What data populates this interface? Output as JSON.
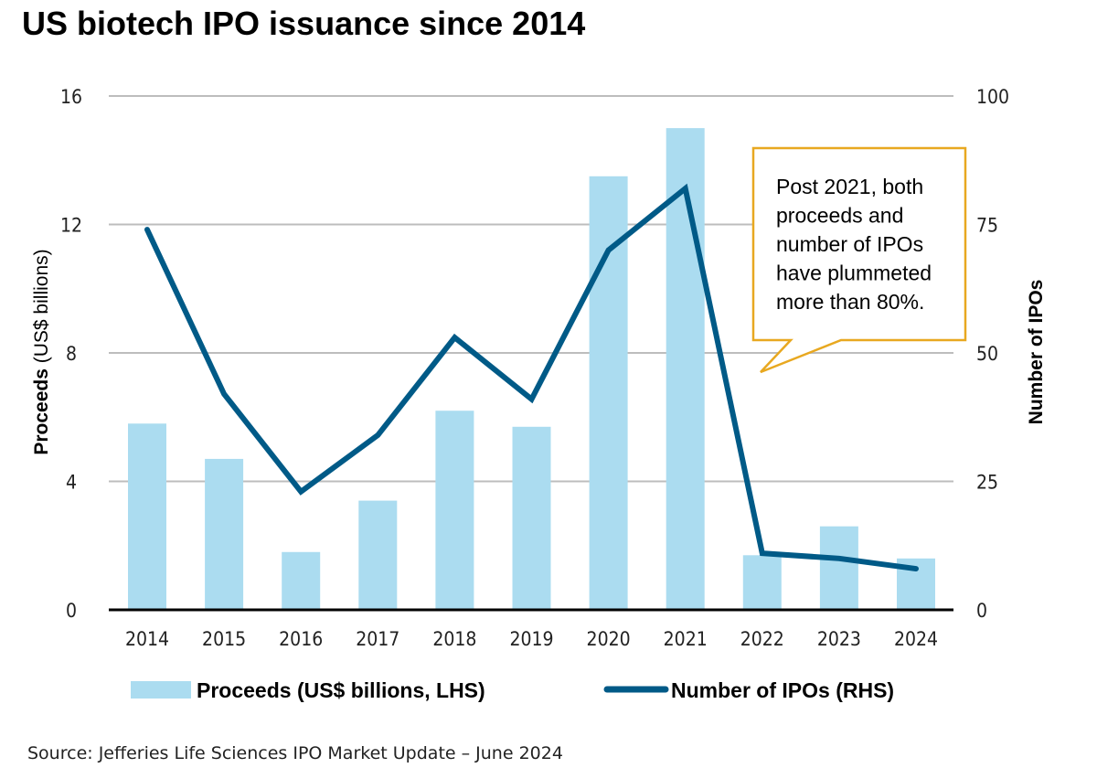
{
  "chart_data": {
    "type": "bar",
    "title": "US biotech IPO issuance since 2014",
    "categories": [
      "2014",
      "2015",
      "2016",
      "2017",
      "2018",
      "2019",
      "2020",
      "2021",
      "2022",
      "2023",
      "2024"
    ],
    "series": [
      {
        "name": "Proceeds (US$ billions, LHS)",
        "type": "bar",
        "axis": "left",
        "color": "#ABDCF0",
        "values": [
          5.8,
          4.7,
          1.8,
          3.4,
          6.2,
          5.7,
          13.5,
          15.0,
          1.7,
          2.6,
          1.6
        ]
      },
      {
        "name": "Number of IPOs (RHS)",
        "type": "line",
        "axis": "right",
        "color": "#005A87",
        "values": [
          74,
          42,
          23,
          34,
          53,
          41,
          70,
          82,
          11,
          10,
          8
        ]
      }
    ],
    "left_axis": {
      "label_bold": "Proceeds",
      "label_rest": " (US$ billions)",
      "ylim": [
        0,
        16
      ],
      "ticks": [
        "0",
        "4",
        "8",
        "12",
        "16"
      ]
    },
    "right_axis": {
      "label": "Number of IPOs",
      "ylim": [
        0,
        100
      ],
      "ticks": [
        "0",
        "25",
        "50",
        "75",
        "100"
      ]
    },
    "xlabel": "",
    "grid": true,
    "legend": {
      "placement": "bottom",
      "items": [
        "Proceeds (US$ billions, LHS)",
        "Number of IPOs (RHS)"
      ]
    },
    "annotation": {
      "lines": [
        "Post 2021, both",
        "proceeds and",
        "number of IPOs",
        "have plummeted",
        "more than 80%."
      ],
      "border_color": "#E8A820"
    },
    "source": "Source: Jefferies Life Sciences IPO Market Update – June 2024"
  }
}
